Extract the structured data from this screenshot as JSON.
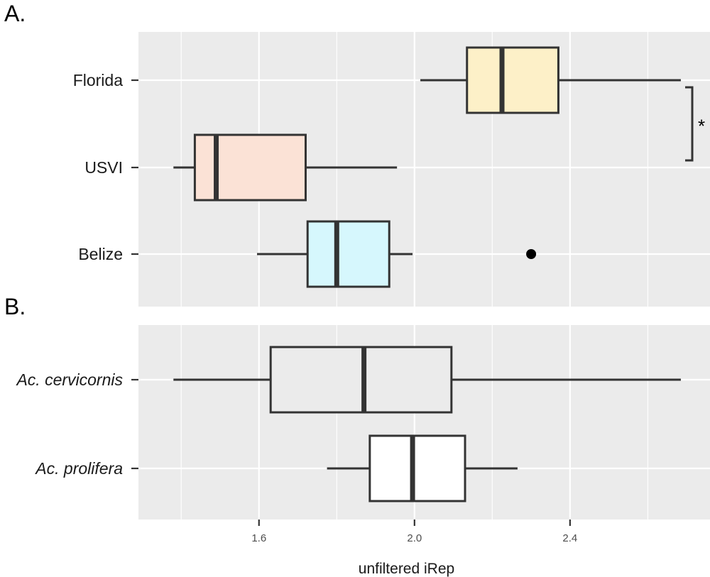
{
  "chart_data": [
    {
      "type": "boxplot",
      "panel_label": "A.",
      "orientation": "horizontal",
      "categories": [
        "Florida",
        "USVI",
        "Belize"
      ],
      "boxes": [
        {
          "name": "Florida",
          "whisker_low": 2.015,
          "q1": 2.135,
          "median": 2.225,
          "q3": 2.37,
          "whisker_high": 2.685,
          "outliers": [],
          "fill": "#fdf0c8"
        },
        {
          "name": "USVI",
          "whisker_low": 1.38,
          "q1": 1.435,
          "median": 1.49,
          "q3": 1.72,
          "whisker_high": 1.955,
          "outliers": [],
          "fill": "#fbe2d6"
        },
        {
          "name": "Belize",
          "whisker_low": 1.595,
          "q1": 1.725,
          "median": 1.8,
          "q3": 1.935,
          "whisker_high": 1.995,
          "outliers": [
            2.3
          ],
          "fill": "#d6f7fd"
        }
      ],
      "significance": {
        "from": "Florida",
        "to": "USVI",
        "label": "*"
      }
    },
    {
      "type": "boxplot",
      "panel_label": "B.",
      "orientation": "horizontal",
      "categories": [
        "Ac. cervicornis",
        "Ac. prolifera"
      ],
      "boxes": [
        {
          "name": "Ac. cervicornis",
          "whisker_low": 1.38,
          "q1": 1.63,
          "median": 1.87,
          "q3": 2.095,
          "whisker_high": 2.685,
          "outliers": [],
          "fill": "#ebebeb"
        },
        {
          "name": "Ac. prolifera",
          "whisker_low": 1.775,
          "q1": 1.885,
          "median": 1.995,
          "q3": 2.13,
          "whisker_high": 2.265,
          "outliers": [],
          "fill": "#ffffff"
        }
      ]
    }
  ],
  "x_axis": {
    "title": "unfiltered iRep",
    "range": [
      1.29,
      2.76
    ],
    "major_ticks": [
      1.6,
      2.0,
      2.4
    ],
    "tick_labels": [
      "1.6",
      "2.0",
      "2.4"
    ],
    "minor_ticks": [
      1.4,
      1.8,
      2.2,
      2.6
    ],
    "grid": true
  },
  "colors": {
    "panel_bg": "#ebebeb",
    "grid": "#ffffff",
    "stroke": "#333333"
  }
}
